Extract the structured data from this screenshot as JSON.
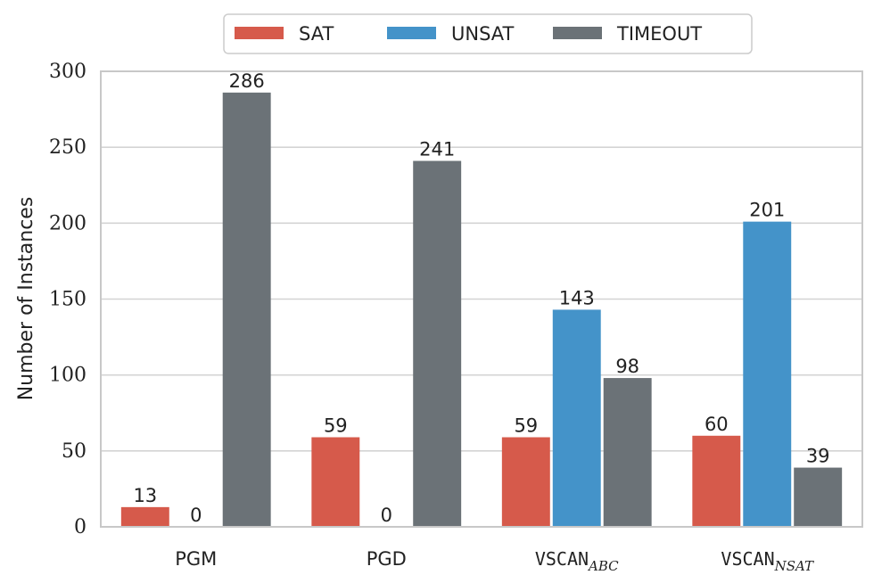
{
  "chart_data": {
    "type": "bar",
    "ylabel": "Number of Instances",
    "ylim": [
      0,
      300
    ],
    "yticks": [
      0,
      50,
      100,
      150,
      200,
      250,
      300
    ],
    "grid": "horizontal",
    "legend_position": "top-center",
    "categories": [
      {
        "main": "PGM",
        "sub": ""
      },
      {
        "main": "PGD",
        "sub": ""
      },
      {
        "main": "VSCAN",
        "sub": "ABC"
      },
      {
        "main": "VSCAN",
        "sub": "NSAT"
      }
    ],
    "series": [
      {
        "name": "SAT",
        "color": "#d65a4b",
        "values": [
          13,
          59,
          59,
          60
        ]
      },
      {
        "name": "UNSAT",
        "color": "#4493c9",
        "values": [
          0,
          0,
          143,
          201
        ]
      },
      {
        "name": "TIMEOUT",
        "color": "#6b7277",
        "values": [
          286,
          241,
          98,
          39
        ]
      }
    ]
  }
}
